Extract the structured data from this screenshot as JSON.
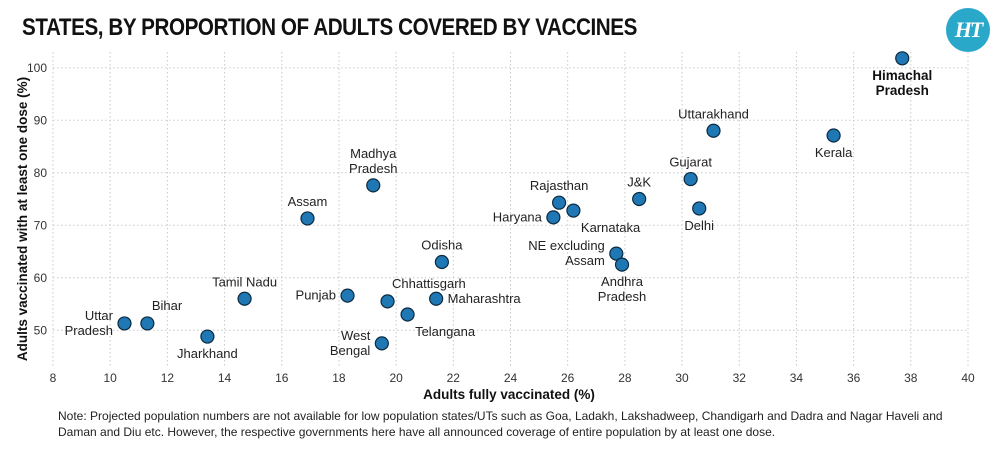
{
  "title": "STATES, BY PROPORTION OF ADULTS COVERED BY VACCINES",
  "logo_text": "HT",
  "logo_color": "#2aa8c9",
  "note": "Note: Projected population numbers are not available for low population states/UTs such as Goa, Ladakh, Lakshadweep, Chandigarh and Dadra and Nagar Haveli and Daman and Diu etc. However, the respective governments here have all announced coverage of entire population by at least one dose.",
  "chart_data": {
    "type": "scatter",
    "title": "STATES, BY PROPORTION OF ADULTS COVERED BY VACCINES",
    "xlabel": "Adults fully vaccinated (%)",
    "ylabel": "Adults vaccinated with at least one dose (%)",
    "xlim": [
      8,
      40
    ],
    "ylim": [
      43,
      103
    ],
    "xticks": [
      "8",
      "10",
      "12",
      "14",
      "16",
      "18",
      "20",
      "22",
      "24",
      "26",
      "28",
      "30",
      "32",
      "34",
      "36",
      "38",
      "40"
    ],
    "yticks": [
      "50",
      "60",
      "70",
      "80",
      "90",
      "100"
    ],
    "grid": true,
    "marker_color": "#1f77b4",
    "points": [
      {
        "label": "Uttar Pradesh",
        "lines": [
          "Uttar",
          "Pradesh"
        ],
        "x": 10.5,
        "y": 51.3,
        "pos": "left"
      },
      {
        "label": "Bihar",
        "lines": [
          "Bihar"
        ],
        "x": 11.3,
        "y": 51.3,
        "pos": "top-right"
      },
      {
        "label": "Jharkhand",
        "lines": [
          "Jharkhand"
        ],
        "x": 13.4,
        "y": 48.8,
        "pos": "bottom"
      },
      {
        "label": "Tamil Nadu",
        "lines": [
          "Tamil Nadu"
        ],
        "x": 14.7,
        "y": 56.0,
        "pos": "top"
      },
      {
        "label": "Assam",
        "lines": [
          "Assam"
        ],
        "x": 16.9,
        "y": 71.3,
        "pos": "top"
      },
      {
        "label": "Punjab",
        "lines": [
          "Punjab"
        ],
        "x": 18.3,
        "y": 56.6,
        "pos": "left"
      },
      {
        "label": "Madhya Pradesh",
        "lines": [
          "Madhya",
          "Pradesh"
        ],
        "x": 19.2,
        "y": 77.6,
        "pos": "top"
      },
      {
        "label": "West Bengal",
        "lines": [
          "West",
          "Bengal"
        ],
        "x": 19.5,
        "y": 47.5,
        "pos": "left"
      },
      {
        "label": "Chhattisgarh",
        "lines": [
          "Chhattisgarh"
        ],
        "x": 19.7,
        "y": 55.5,
        "pos": "top-right"
      },
      {
        "label": "Telangana",
        "lines": [
          "Telangana"
        ],
        "x": 20.4,
        "y": 53.0,
        "pos": "bottom-right"
      },
      {
        "label": "Maharashtra",
        "lines": [
          "Maharashtra"
        ],
        "x": 21.4,
        "y": 56.0,
        "pos": "right"
      },
      {
        "label": "Odisha",
        "lines": [
          "Odisha"
        ],
        "x": 21.6,
        "y": 63.0,
        "pos": "top"
      },
      {
        "label": "Haryana",
        "lines": [
          "Haryana"
        ],
        "x": 25.5,
        "y": 71.5,
        "pos": "left"
      },
      {
        "label": "Rajasthan",
        "lines": [
          "Rajasthan"
        ],
        "x": 25.7,
        "y": 74.3,
        "pos": "top"
      },
      {
        "label": "Karnataka",
        "lines": [
          "Karnataka"
        ],
        "x": 26.2,
        "y": 72.8,
        "pos": "bottom-right"
      },
      {
        "label": "NE excluding Assam",
        "lines": [
          "NE excluding",
          "Assam"
        ],
        "x": 27.7,
        "y": 64.6,
        "pos": "left"
      },
      {
        "label": "Andhra Pradesh",
        "lines": [
          "Andhra",
          "Pradesh"
        ],
        "x": 27.9,
        "y": 62.5,
        "pos": "bottom"
      },
      {
        "label": "J&K",
        "lines": [
          "J&K"
        ],
        "x": 28.5,
        "y": 75.0,
        "pos": "top"
      },
      {
        "label": "Gujarat",
        "lines": [
          "Gujarat"
        ],
        "x": 30.3,
        "y": 78.8,
        "pos": "top"
      },
      {
        "label": "Delhi",
        "lines": [
          "Delhi"
        ],
        "x": 30.6,
        "y": 73.2,
        "pos": "bottom"
      },
      {
        "label": "Uttarakhand",
        "lines": [
          "Uttarakhand"
        ],
        "x": 31.1,
        "y": 88.0,
        "pos": "top"
      },
      {
        "label": "Kerala",
        "lines": [
          "Kerala"
        ],
        "x": 35.3,
        "y": 87.1,
        "pos": "bottom"
      },
      {
        "label": "Himachal Pradesh",
        "lines": [
          "Himachal",
          "Pradesh"
        ],
        "x": 37.7,
        "y": 101.8,
        "pos": "bottom",
        "bold": true
      }
    ]
  }
}
